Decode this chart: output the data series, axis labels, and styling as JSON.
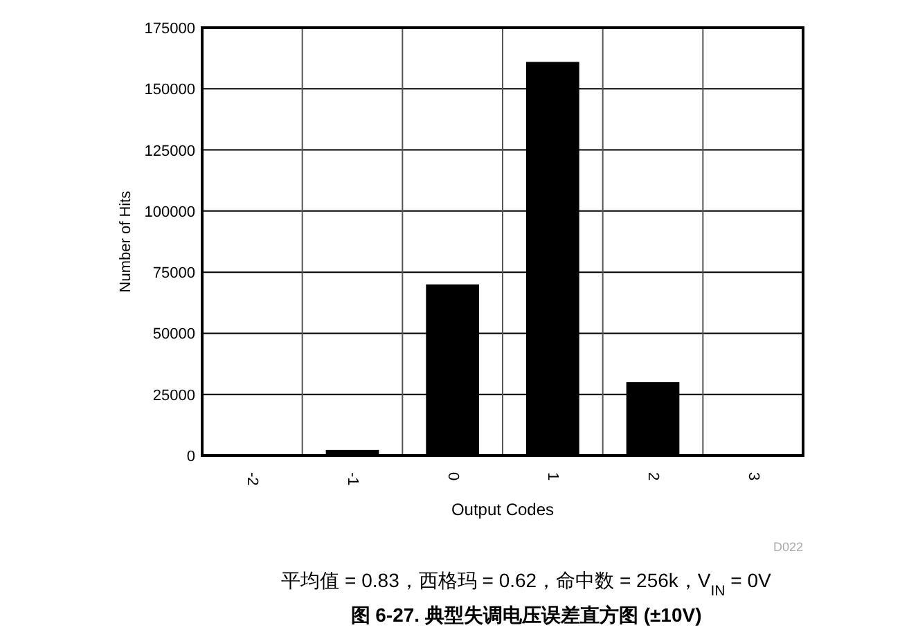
{
  "chart_data": {
    "type": "bar",
    "title": "图 6-27. 典型失调电压误差直方图 (±10V)",
    "xlabel": "Output Codes",
    "ylabel": "Number of Hits",
    "categories": [
      "-2",
      "-1",
      "0",
      "1",
      "2",
      "3"
    ],
    "values": [
      400,
      2300,
      70000,
      161000,
      30000,
      400
    ],
    "color": "#000000",
    "ylim": [
      0,
      175000
    ],
    "yticks": [
      0,
      25000,
      50000,
      75000,
      100000,
      125000,
      150000,
      175000
    ],
    "grid": true,
    "annotations": [
      "D022",
      "平均值 = 0.83，西格玛 = 0.62，命中数 = 256k，V$_{IN}$ = 0V"
    ]
  }
}
